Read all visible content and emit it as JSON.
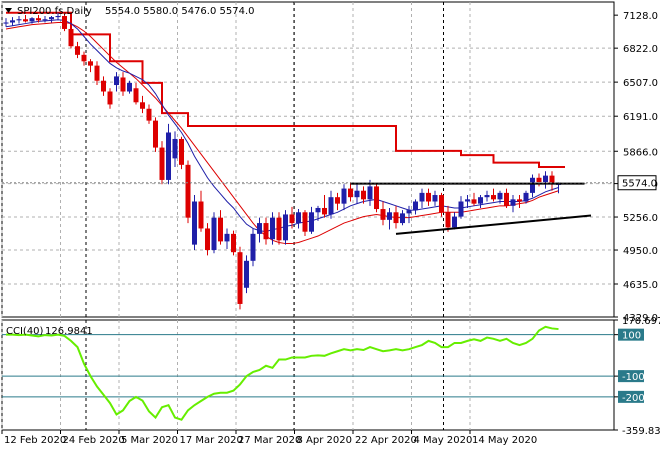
{
  "header": {
    "symbol": "SPI200.fs,Daily",
    "ohlc": "5554.0 5580.0 5476.0 5574.0"
  },
  "cci_header": {
    "label": "CCI(40)",
    "value": "126.9841"
  },
  "colors": {
    "bull": "#1f1fa8",
    "bear": "#dd0000",
    "sma_fast": "#1f1fa8",
    "sma_slow": "#dd0000",
    "stop_line": "#dd0000",
    "trendline": "#000000",
    "cci_line": "#66ee00",
    "cci_levels": "#2a7a8a",
    "grid": "#b0b0b0"
  },
  "chart_data": [
    {
      "type": "candlestick",
      "name": "price",
      "ylim": [
        4329.0,
        7250
      ],
      "y_ticks": [
        "7128.0",
        "6822.0",
        "6507.0",
        "6191.0",
        "5866.0",
        "5566.0",
        "5256.0",
        "4950.0",
        "4635.0",
        "4329.0"
      ],
      "last_price_label": "5574.0",
      "candles": [
        [
          7050,
          7100,
          7020,
          7060
        ],
        [
          7060,
          7110,
          7030,
          7080
        ],
        [
          7080,
          7120,
          7050,
          7090
        ],
        [
          7090,
          7130,
          7060,
          7070
        ],
        [
          7070,
          7110,
          7050,
          7100
        ],
        [
          7100,
          7130,
          7060,
          7080
        ],
        [
          7080,
          7120,
          7060,
          7090
        ],
        [
          7090,
          7120,
          7060,
          7110
        ],
        [
          7110,
          7150,
          7080,
          7120
        ],
        [
          7120,
          7140,
          6980,
          7000
        ],
        [
          7000,
          7020,
          6820,
          6840
        ],
        [
          6840,
          6880,
          6730,
          6760
        ],
        [
          6760,
          6790,
          6660,
          6700
        ],
        [
          6700,
          6720,
          6600,
          6660
        ],
        [
          6660,
          6700,
          6480,
          6520
        ],
        [
          6520,
          6560,
          6380,
          6420
        ],
        [
          6420,
          6450,
          6260,
          6300
        ],
        [
          6480,
          6600,
          6420,
          6560
        ],
        [
          6550,
          6600,
          6380,
          6420
        ],
        [
          6420,
          6520,
          6400,
          6500
        ],
        [
          6450,
          6500,
          6300,
          6320
        ],
        [
          6320,
          6380,
          6220,
          6260
        ],
        [
          6260,
          6300,
          6120,
          6150
        ],
        [
          6150,
          6180,
          5860,
          5900
        ],
        [
          5900,
          5960,
          5560,
          5600
        ],
        [
          5600,
          6120,
          5560,
          6040
        ],
        [
          5800,
          6050,
          5720,
          5980
        ],
        [
          5980,
          6000,
          5700,
          5740
        ],
        [
          5740,
          5780,
          5200,
          5250
        ],
        [
          5000,
          5460,
          4950,
          5400
        ],
        [
          5400,
          5500,
          5120,
          5150
        ],
        [
          5150,
          5200,
          4900,
          4950
        ],
        [
          4950,
          5300,
          4920,
          5250
        ],
        [
          5250,
          5320,
          5000,
          5030
        ],
        [
          5030,
          5150,
          4960,
          5100
        ],
        [
          5100,
          5130,
          4900,
          4930
        ],
        [
          4930,
          4980,
          4400,
          4450
        ],
        [
          4600,
          4900,
          4550,
          4850
        ],
        [
          4850,
          5150,
          4800,
          5100
        ],
        [
          5100,
          5250,
          5020,
          5200
        ],
        [
          5200,
          5250,
          5000,
          5050
        ],
        [
          5050,
          5300,
          5000,
          5250
        ],
        [
          5250,
          5300,
          5000,
          5040
        ],
        [
          5040,
          5320,
          5000,
          5280
        ],
        [
          5280,
          5350,
          5150,
          5200
        ],
        [
          5200,
          5330,
          5150,
          5300
        ],
        [
          5300,
          5320,
          5080,
          5120
        ],
        [
          5120,
          5350,
          5100,
          5300
        ],
        [
          5300,
          5360,
          5220,
          5340
        ],
        [
          5340,
          5460,
          5250,
          5280
        ],
        [
          5280,
          5500,
          5240,
          5440
        ],
        [
          5440,
          5480,
          5320,
          5380
        ],
        [
          5380,
          5560,
          5320,
          5520
        ],
        [
          5520,
          5580,
          5400,
          5440
        ],
        [
          5440,
          5560,
          5380,
          5500
        ],
        [
          5500,
          5540,
          5380,
          5420
        ],
        [
          5420,
          5600,
          5360,
          5540
        ],
        [
          5540,
          5560,
          5300,
          5330
        ],
        [
          5330,
          5400,
          5180,
          5230
        ],
        [
          5230,
          5340,
          5140,
          5300
        ],
        [
          5300,
          5360,
          5150,
          5200
        ],
        [
          5200,
          5320,
          5180,
          5290
        ],
        [
          5290,
          5360,
          5200,
          5320
        ],
        [
          5320,
          5420,
          5280,
          5400
        ],
        [
          5400,
          5520,
          5340,
          5480
        ],
        [
          5480,
          5520,
          5360,
          5400
        ],
        [
          5400,
          5500,
          5360,
          5460
        ],
        [
          5460,
          5480,
          5260,
          5300
        ],
        [
          5300,
          5360,
          5120,
          5160
        ],
        [
          5160,
          5300,
          5140,
          5260
        ],
        [
          5260,
          5450,
          5240,
          5400
        ],
        [
          5400,
          5460,
          5340,
          5420
        ],
        [
          5420,
          5480,
          5360,
          5380
        ],
        [
          5380,
          5460,
          5340,
          5440
        ],
        [
          5440,
          5500,
          5400,
          5460
        ],
        [
          5460,
          5520,
          5400,
          5420
        ],
        [
          5420,
          5500,
          5380,
          5480
        ],
        [
          5480,
          5520,
          5340,
          5360
        ],
        [
          5360,
          5460,
          5300,
          5420
        ],
        [
          5420,
          5460,
          5340,
          5400
        ],
        [
          5400,
          5500,
          5380,
          5480
        ],
        [
          5480,
          5650,
          5440,
          5620
        ],
        [
          5620,
          5660,
          5540,
          5580
        ],
        [
          5580,
          5680,
          5520,
          5640
        ],
        [
          5640,
          5680,
          5500,
          5560
        ],
        [
          5554,
          5580,
          5476,
          5574
        ]
      ],
      "sma_fast": [
        7020,
        7030,
        7040,
        7050,
        7060,
        7070,
        7075,
        7080,
        7085,
        7080,
        7050,
        7000,
        6930,
        6860,
        6800,
        6740,
        6680,
        6640,
        6610,
        6590,
        6560,
        6530,
        6480,
        6400,
        6300,
        6200,
        6120,
        6040,
        5940,
        5820,
        5720,
        5620,
        5540,
        5470,
        5400,
        5340,
        5260,
        5190,
        5150,
        5130,
        5120,
        5140,
        5150,
        5170,
        5180,
        5200,
        5210,
        5220,
        5240,
        5260,
        5280,
        5300,
        5330,
        5360,
        5380,
        5400,
        5410,
        5420,
        5400,
        5380,
        5360,
        5340,
        5320,
        5320,
        5330,
        5340,
        5350,
        5360,
        5350,
        5340,
        5340,
        5350,
        5360,
        5370,
        5380,
        5390,
        5400,
        5400,
        5400,
        5400,
        5410,
        5430,
        5460,
        5490,
        5510,
        5530
      ],
      "sma_slow": [
        7000,
        7010,
        7020,
        7030,
        7040,
        7045,
        7050,
        7055,
        7060,
        7060,
        7050,
        7020,
        6980,
        6930,
        6870,
        6810,
        6750,
        6690,
        6640,
        6590,
        6540,
        6480,
        6420,
        6360,
        6290,
        6220,
        6150,
        6080,
        6000,
        5920,
        5840,
        5760,
        5680,
        5600,
        5520,
        5440,
        5360,
        5280,
        5200,
        5130,
        5080,
        5040,
        5020,
        5010,
        5010,
        5020,
        5040,
        5060,
        5080,
        5110,
        5140,
        5170,
        5200,
        5220,
        5240,
        5260,
        5270,
        5280,
        5270,
        5260,
        5250,
        5250,
        5250,
        5260,
        5270,
        5280,
        5290,
        5300,
        5300,
        5300,
        5300,
        5310,
        5320,
        5330,
        5340,
        5350,
        5360,
        5360,
        5370,
        5380,
        5390,
        5410,
        5440,
        5460,
        5480,
        5500
      ],
      "stop_line_steps": [
        [
          0,
          7150
        ],
        [
          9,
          7150
        ],
        [
          10,
          6950
        ],
        [
          16,
          6700
        ],
        [
          21,
          6500
        ],
        [
          24,
          6220
        ],
        [
          28,
          6100
        ],
        [
          58,
          6100
        ],
        [
          60,
          5870
        ],
        [
          70,
          5830
        ],
        [
          75,
          5760
        ],
        [
          82,
          5720
        ],
        [
          86,
          5720
        ]
      ],
      "resistance_line": {
        "from": [
          53,
          5566
        ],
        "to": [
          89,
          5566
        ]
      },
      "support_line": {
        "from": [
          60,
          5100
        ],
        "to": [
          90,
          5270
        ]
      }
    },
    {
      "type": "line",
      "name": "CCI(40)",
      "ylim": [
        -359.836,
        170.6977
      ],
      "y_ticks": [
        "170.6977",
        "100",
        "-100",
        "-200",
        "-359.836"
      ],
      "levels": [
        100,
        -100,
        -200
      ],
      "values": [
        100,
        100,
        98,
        100,
        96,
        92,
        98,
        96,
        100,
        94,
        70,
        40,
        -40,
        -100,
        -150,
        -190,
        -230,
        -285,
        -265,
        -220,
        -200,
        -218,
        -270,
        -300,
        -250,
        -240,
        -300,
        -310,
        -265,
        -240,
        -220,
        -200,
        -185,
        -180,
        -180,
        -170,
        -140,
        -100,
        -80,
        -70,
        -50,
        -60,
        -20,
        -20,
        -10,
        -10,
        -10,
        -2,
        0,
        -2,
        10,
        20,
        30,
        24,
        30,
        26,
        40,
        30,
        20,
        24,
        30,
        24,
        30,
        40,
        50,
        70,
        60,
        40,
        40,
        60,
        60,
        70,
        78,
        70,
        86,
        80,
        70,
        80,
        60,
        50,
        60,
        80,
        120,
        138,
        130,
        126.9841
      ]
    }
  ],
  "x_axis": {
    "labels": [
      "12 Feb 2020",
      "24 Feb 2020",
      "5 Mar 2020",
      "17 Mar 2020",
      "27 Mar 2020",
      "8 Apr 2020",
      "22 Apr 2020",
      "4 May 2020",
      "14 May 2020"
    ]
  }
}
